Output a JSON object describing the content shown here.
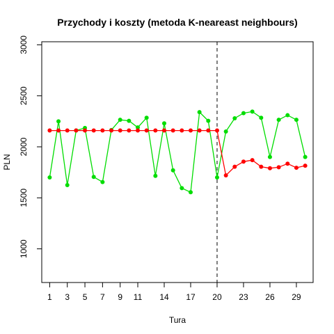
{
  "chart_data": {
    "type": "line",
    "title": "Przychody i koszty (metoda K-neareast neighbours)",
    "xlabel": "Tura",
    "ylabel": "PLN",
    "xlim": [
      0.1,
      30.9
    ],
    "ylim": [
      670,
      3030
    ],
    "x_ticks": [
      1,
      3,
      5,
      7,
      9,
      11,
      14,
      17,
      20,
      23,
      26,
      29
    ],
    "y_ticks": [
      1000,
      1500,
      2000,
      2500,
      3000
    ],
    "vline": 20,
    "grid": false,
    "legend": "none",
    "series": [
      {
        "color": "#00dd00",
        "x": [
          1,
          2,
          3,
          4,
          5,
          6,
          7,
          8,
          9,
          10,
          11,
          12,
          13,
          14,
          15,
          16,
          17,
          18,
          19,
          20,
          21,
          22,
          23,
          24,
          25,
          26,
          27,
          28,
          29,
          30
        ],
        "values": [
          1700,
          2250,
          1625,
          2160,
          2185,
          1705,
          1655,
          2165,
          2265,
          2255,
          2190,
          2285,
          1715,
          2230,
          1770,
          1595,
          1555,
          2340,
          2255,
          1700,
          2150,
          2280,
          2330,
          2345,
          2285,
          1900,
          2265,
          2310,
          2265,
          1900
        ]
      },
      {
        "color": "#ff0000",
        "x": [
          1,
          2,
          3,
          4,
          5,
          6,
          7,
          8,
          9,
          10,
          11,
          12,
          13,
          14,
          15,
          16,
          17,
          18,
          19,
          20,
          21,
          22,
          23,
          24,
          25,
          26,
          27,
          28,
          29,
          30
        ],
        "values": [
          2160,
          2160,
          2160,
          2160,
          2160,
          2160,
          2160,
          2160,
          2160,
          2160,
          2160,
          2160,
          2160,
          2160,
          2160,
          2160,
          2160,
          2160,
          2160,
          2160,
          1720,
          1805,
          1855,
          1870,
          1805,
          1790,
          1800,
          1835,
          1795,
          1815
        ]
      }
    ]
  }
}
